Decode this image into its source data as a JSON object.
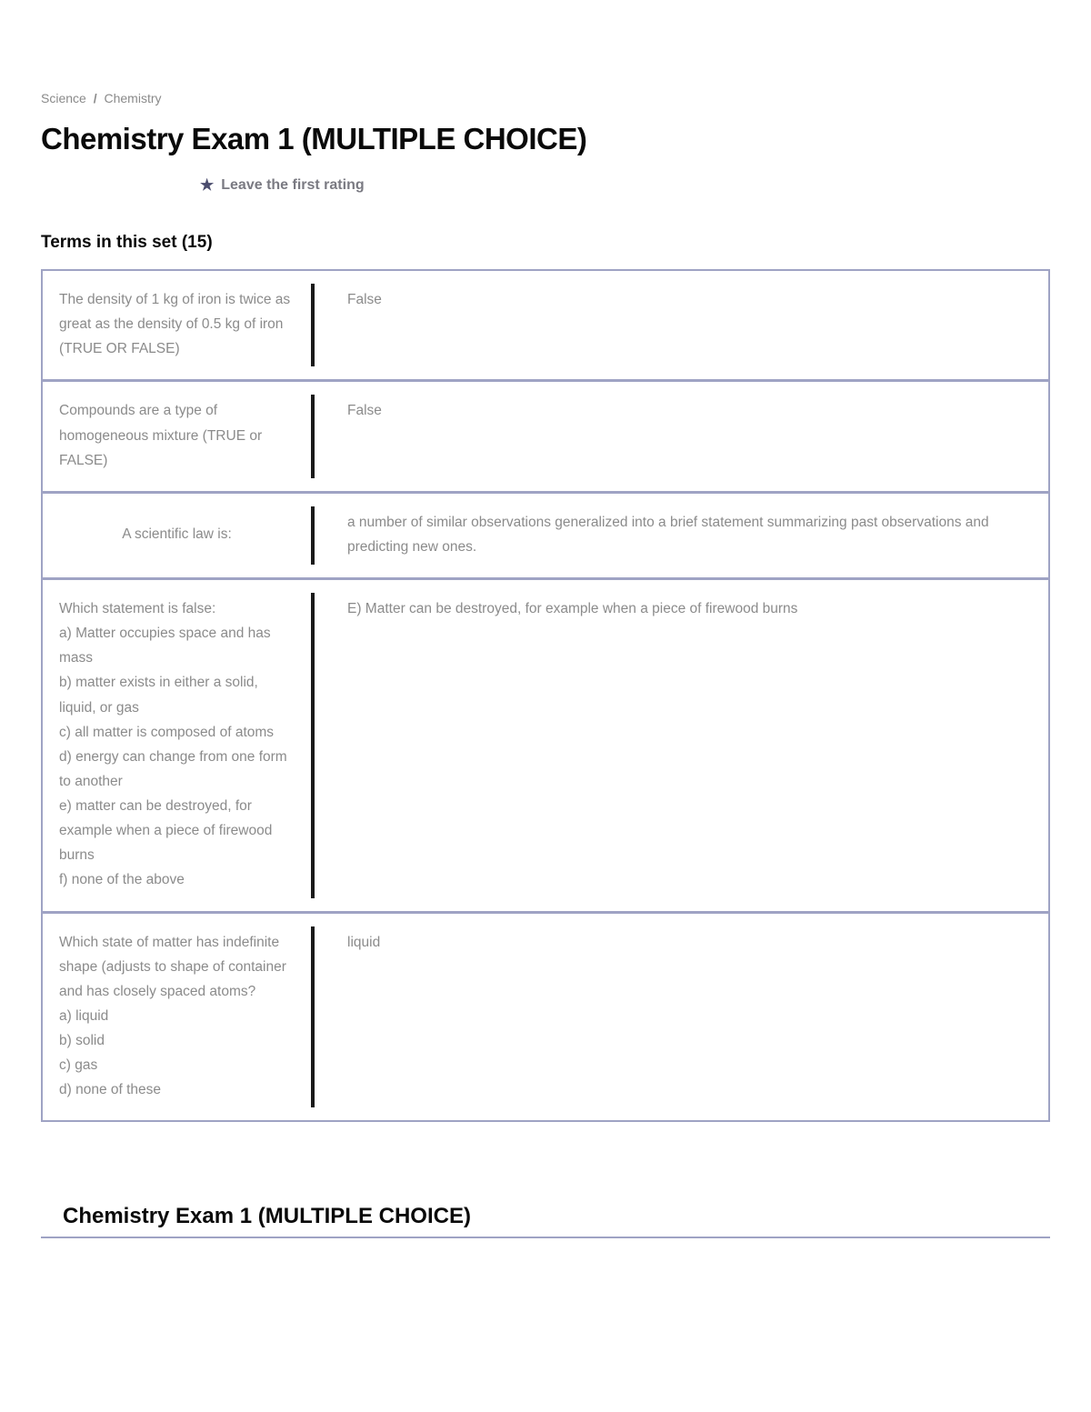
{
  "breadcrumb": {
    "items": [
      "Science",
      "Chemistry"
    ],
    "separator": "/"
  },
  "page": {
    "title": "Chemistry Exam 1 (MULTIPLE CHOICE)",
    "rating_text": "Leave the first rating",
    "terms_heading": "Terms in this set (15)",
    "footer_title": "Chemistry Exam 1 (MULTIPLE CHOICE)"
  },
  "styles": {
    "border_color": "#9fa3c4",
    "divider_color": "#1a1a1a",
    "text_muted": "#8b8b8b",
    "star_color": "#4b4d6e",
    "heading_color": "#0a0a0a",
    "background": "#ffffff",
    "title_fontsize": 33,
    "terms_fontsize": 19,
    "body_fontsize": 15.5
  },
  "cards": [
    {
      "term": "The density of 1 kg of iron is twice as great as the density of 0.5 kg of iron (TRUE OR FALSE)",
      "definition": "False",
      "centered": false
    },
    {
      "term": "Compounds are a type of homogeneous mixture (TRUE or FALSE)",
      "definition": "False",
      "centered": false
    },
    {
      "term": "A scientific law is:",
      "definition": "a number of similar observations generalized into a brief statement summarizing past observations and predicting new ones.",
      "centered": true
    },
    {
      "term": "Which statement is false:\na) Matter occupies space and has mass\nb) matter exists in either a solid, liquid, or gas\nc) all matter is composed of atoms\nd) energy can change from one form to another\ne) matter can be destroyed, for example when a piece of firewood burns\nf) none of the above",
      "definition": "E) Matter can be destroyed, for example when a piece of firewood burns",
      "centered": false
    },
    {
      "term": "Which state of matter has indefinite shape (adjusts to shape of container and has closely spaced atoms?\na) liquid\nb) solid\nc) gas\nd) none of these",
      "definition": "liquid",
      "centered": false
    }
  ]
}
